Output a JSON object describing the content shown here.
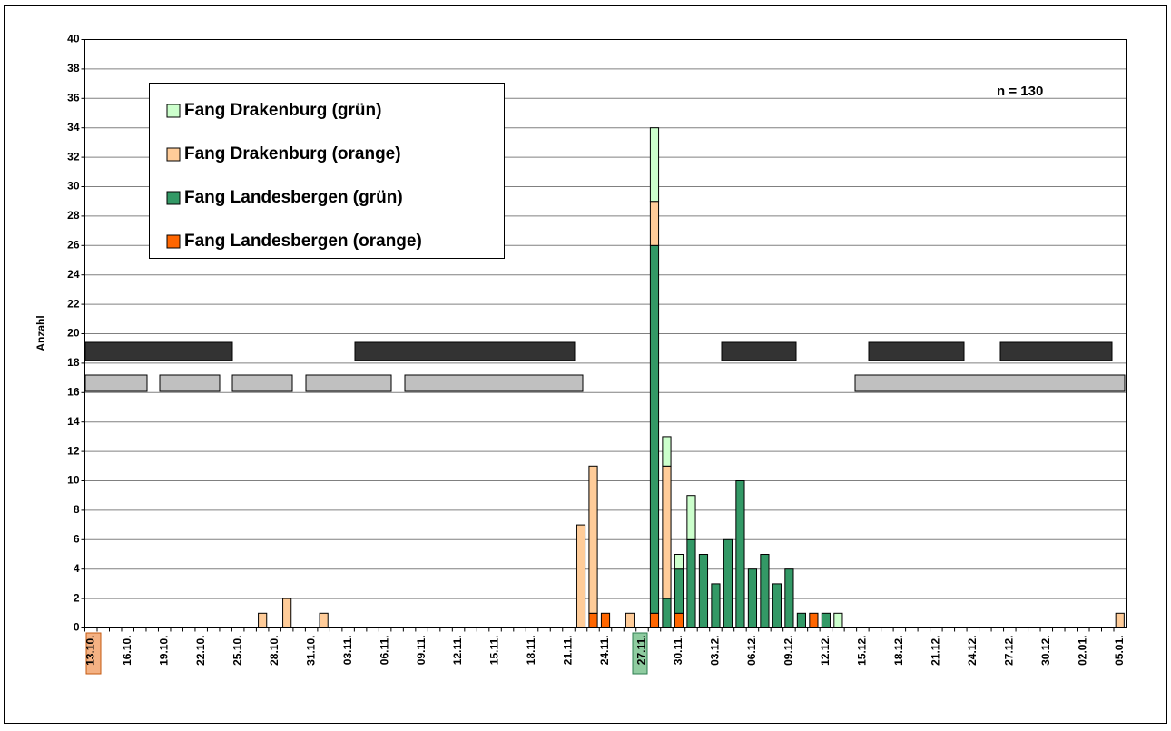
{
  "chart_data": {
    "type": "bar",
    "stacked": true,
    "ylabel": "Anzahl",
    "annotation": "n = 130",
    "categories": [
      "13.10.",
      null,
      null,
      "16.10.",
      null,
      null,
      "19.10.",
      null,
      null,
      "22.10.",
      null,
      null,
      "25.10.",
      null,
      null,
      "28.10.",
      null,
      null,
      "31.10.",
      null,
      null,
      "03.11.",
      null,
      null,
      "06.11.",
      null,
      null,
      "09.11.",
      null,
      null,
      "12.11.",
      null,
      null,
      "15.11.",
      null,
      null,
      "18.11.",
      null,
      null,
      "21.11.",
      null,
      null,
      "24.11.",
      null,
      null,
      "27.11.",
      null,
      null,
      "30.11.",
      null,
      null,
      "03.12.",
      null,
      null,
      "06.12.",
      null,
      null,
      "09.12.",
      null,
      null,
      "12.12.",
      null,
      null,
      "15.12.",
      null,
      null,
      "18.12.",
      null,
      null,
      "21.12.",
      null,
      null,
      "24.12.",
      null,
      null,
      "27.12.",
      null,
      null,
      "30.12.",
      null,
      null,
      "02.01.",
      null,
      null,
      "05.01."
    ],
    "series": [
      {
        "name": "Fang Drakenburg (grün)",
        "color": "#ccffcc",
        "values": [
          0,
          0,
          0,
          0,
          0,
          0,
          0,
          0,
          0,
          0,
          0,
          0,
          0,
          0,
          0,
          0,
          0,
          0,
          0,
          0,
          0,
          0,
          0,
          0,
          0,
          0,
          0,
          0,
          0,
          0,
          0,
          0,
          0,
          0,
          0,
          0,
          0,
          0,
          0,
          0,
          0,
          0,
          0,
          0,
          0,
          0,
          5,
          2,
          1,
          3,
          0,
          0,
          0,
          0,
          0,
          0,
          0,
          0,
          0,
          0,
          0,
          1,
          0,
          0,
          0,
          0,
          0,
          0,
          0,
          0,
          0,
          0,
          0,
          0,
          0,
          0,
          0,
          0,
          0,
          0,
          0,
          0,
          0,
          0,
          0
        ]
      },
      {
        "name": "Fang Drakenburg (orange)",
        "color": "#ffcc99",
        "values": [
          0,
          0,
          0,
          0,
          0,
          0,
          0,
          0,
          0,
          0,
          0,
          0,
          0,
          0,
          1,
          0,
          2,
          0,
          0,
          1,
          0,
          0,
          0,
          0,
          0,
          0,
          0,
          0,
          0,
          0,
          0,
          0,
          0,
          0,
          0,
          0,
          0,
          0,
          0,
          0,
          7,
          10,
          0,
          0,
          1,
          0,
          3,
          9,
          0,
          0,
          0,
          0,
          0,
          0,
          0,
          0,
          0,
          0,
          0,
          0,
          0,
          0,
          0,
          0,
          0,
          0,
          0,
          0,
          0,
          0,
          0,
          0,
          0,
          0,
          0,
          0,
          0,
          0,
          0,
          0,
          0,
          0,
          0,
          0,
          1
        ]
      },
      {
        "name": "Fang Landesbergen (grün)",
        "color": "#339966",
        "values": [
          0,
          0,
          0,
          0,
          0,
          0,
          0,
          0,
          0,
          0,
          0,
          0,
          0,
          0,
          0,
          0,
          0,
          0,
          0,
          0,
          0,
          0,
          0,
          0,
          0,
          0,
          0,
          0,
          0,
          0,
          0,
          0,
          0,
          0,
          0,
          0,
          0,
          0,
          0,
          0,
          0,
          0,
          0,
          0,
          0,
          0,
          25,
          2,
          3,
          6,
          5,
          3,
          6,
          10,
          4,
          5,
          3,
          4,
          1,
          0,
          1,
          0,
          0,
          0,
          0,
          0,
          0,
          0,
          0,
          0,
          0,
          0,
          0,
          0,
          0,
          0,
          0,
          0,
          0,
          0,
          0,
          0,
          0,
          0,
          0
        ]
      },
      {
        "name": "Fang Landesbergen (orange)",
        "color": "#ff6600",
        "values": [
          0,
          0,
          0,
          0,
          0,
          0,
          0,
          0,
          0,
          0,
          0,
          0,
          0,
          0,
          0,
          0,
          0,
          0,
          0,
          0,
          0,
          0,
          0,
          0,
          0,
          0,
          0,
          0,
          0,
          0,
          0,
          0,
          0,
          0,
          0,
          0,
          0,
          0,
          0,
          0,
          0,
          1,
          1,
          0,
          0,
          0,
          1,
          0,
          1,
          0,
          0,
          0,
          0,
          0,
          0,
          0,
          0,
          0,
          0,
          1,
          0,
          0,
          0,
          0,
          0,
          0,
          0,
          0,
          0,
          0,
          0,
          0,
          0,
          0,
          0,
          0,
          0,
          0,
          0,
          0,
          0,
          0,
          0,
          0,
          0
        ]
      }
    ],
    "ylim": [
      0,
      40
    ],
    "yticks": [
      0,
      2,
      4,
      6,
      8,
      10,
      12,
      14,
      16,
      18,
      20,
      22,
      24,
      26,
      28,
      30,
      32,
      34,
      36,
      38,
      40
    ],
    "grid": true
  }
}
